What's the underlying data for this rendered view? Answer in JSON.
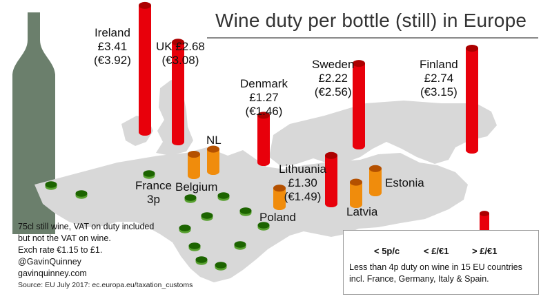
{
  "chart_data": {
    "type": "bar",
    "title": "Wine duty per bottle (still) in Europe",
    "unit": "£ per bottle",
    "series": [
      {
        "name": "> £/€1",
        "color": "#e8000b",
        "points": [
          {
            "country": "Ireland",
            "gbp": "£3.41",
            "eur": "(€3.92)",
            "value": 3.41
          },
          {
            "country": "UK",
            "gbp": "£2.68",
            "eur": "(€3.08)",
            "value": 2.68
          },
          {
            "country": "Denmark",
            "gbp": "£1.27",
            "eur": "(€1.46)",
            "value": 1.27
          },
          {
            "country": "Sweden",
            "gbp": "£2.22",
            "eur": "(€2.56)",
            "value": 2.22
          },
          {
            "country": "Finland",
            "gbp": "£2.74",
            "eur": "(€3.15)",
            "value": 2.74
          },
          {
            "country": "Lithuania",
            "gbp": "£1.30",
            "eur": "(€1.49)",
            "value": 1.3
          }
        ]
      },
      {
        "name": "< £/€1",
        "color": "#f08c0c",
        "points": [
          {
            "country": "NL",
            "value": 0.6
          },
          {
            "country": "Belgium",
            "value": 0.5
          },
          {
            "country": "Latvia",
            "value": 0.6
          },
          {
            "country": "Estonia",
            "value": 0.8
          },
          {
            "country": "Poland",
            "value": 0.2
          }
        ]
      },
      {
        "name": "< 5p/c",
        "color": "#58a030",
        "points": [
          {
            "country": "France",
            "label": "3p",
            "value": 0.03
          }
        ]
      }
    ],
    "map_labels": [
      "Ireland",
      "UK",
      "Denmark",
      "Sweden",
      "Finland",
      "Lithuania",
      "NL",
      "Belgium",
      "France",
      "Latvia",
      "Estonia",
      "Poland"
    ]
  },
  "labels": {
    "ireland": {
      "name": "Ireland",
      "gbp": "£3.41",
      "eur": "(€3.92)"
    },
    "uk": {
      "line1": "UK £2.68",
      "eur": "(€3.08)"
    },
    "denmark": {
      "name": "Denmark",
      "gbp": "£1.27",
      "eur": "(€1.46)"
    },
    "sweden": {
      "name": "Sweden",
      "gbp": "£2.22",
      "eur": "(€2.56)"
    },
    "finland": {
      "name": "Finland",
      "gbp": "£2.74",
      "eur": "(€3.15)"
    },
    "lithuania": {
      "name": "Lithuania",
      "gbp": "£1.30",
      "eur": "(€1.49)"
    },
    "nl": "NL",
    "belgium": "Belgium",
    "france": {
      "name": "France",
      "value": "3p"
    },
    "latvia": "Latvia",
    "estonia": "Estonia",
    "poland": "Poland"
  },
  "legend": {
    "green": "< 5p/c",
    "orange": "< £/€1",
    "red": "> £/€1",
    "note1": "Less than 4p duty on wine in 15 EU countries",
    "note2": "incl. France, Germany, Italy & Spain."
  },
  "notes": {
    "line1": "75cl still wine, VAT on duty included",
    "line2": "but not the VAT on wine.",
    "line3": "Exch rate €1.15 to £1.",
    "line4": "@GavinQuinney",
    "line5": "gavinquinney.com",
    "source": "Source: EU July 2017: ec.europa.eu/taxation_customs"
  },
  "colors": {
    "map": "#d8d8d8",
    "bottle": "#6b7f6c",
    "red": "#e8000b",
    "orange": "#f08c0c",
    "green": "#58a030"
  }
}
